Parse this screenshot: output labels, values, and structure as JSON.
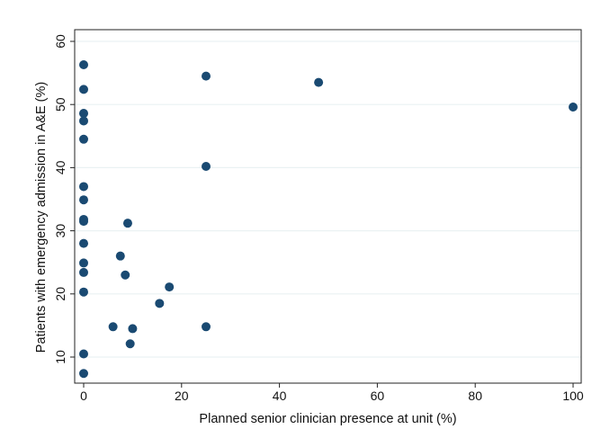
{
  "chart_data": {
    "type": "scatter",
    "title": "",
    "xlabel": "Planned senior clinician presence at unit (%)",
    "ylabel": "Patients with emergency admission in A&E (%)",
    "xlim": [
      0,
      100
    ],
    "ylim": [
      10,
      60
    ],
    "x_ticks": [
      0,
      20,
      40,
      60,
      80,
      100
    ],
    "y_ticks": [
      10,
      20,
      30,
      40,
      50,
      60
    ],
    "grid": "horizontal",
    "legend": "none",
    "marker_color": "#1a4a72",
    "gridline_color": "#eaf2f3",
    "series": [
      {
        "points": [
          {
            "x": 0,
            "y": 56.3
          },
          {
            "x": 0,
            "y": 52.4
          },
          {
            "x": 0,
            "y": 48.6
          },
          {
            "x": 0,
            "y": 47.4
          },
          {
            "x": 0,
            "y": 44.5
          },
          {
            "x": 0,
            "y": 37.0
          },
          {
            "x": 0,
            "y": 34.9
          },
          {
            "x": 0,
            "y": 31.8
          },
          {
            "x": 0,
            "y": 31.5
          },
          {
            "x": 0,
            "y": 28.0
          },
          {
            "x": 0,
            "y": 24.9
          },
          {
            "x": 0,
            "y": 23.4
          },
          {
            "x": 0,
            "y": 20.3
          },
          {
            "x": 0,
            "y": 10.5
          },
          {
            "x": 0,
            "y": 7.4
          },
          {
            "x": 6.0,
            "y": 14.8
          },
          {
            "x": 7.5,
            "y": 26.0
          },
          {
            "x": 8.5,
            "y": 23.0
          },
          {
            "x": 9.0,
            "y": 31.2
          },
          {
            "x": 9.5,
            "y": 12.1
          },
          {
            "x": 10.0,
            "y": 14.5
          },
          {
            "x": 15.5,
            "y": 18.5
          },
          {
            "x": 17.5,
            "y": 21.1
          },
          {
            "x": 25.0,
            "y": 54.5
          },
          {
            "x": 25.0,
            "y": 40.2
          },
          {
            "x": 25.0,
            "y": 14.8
          },
          {
            "x": 48.0,
            "y": 53.5
          },
          {
            "x": 100.0,
            "y": 49.6
          }
        ]
      }
    ]
  }
}
